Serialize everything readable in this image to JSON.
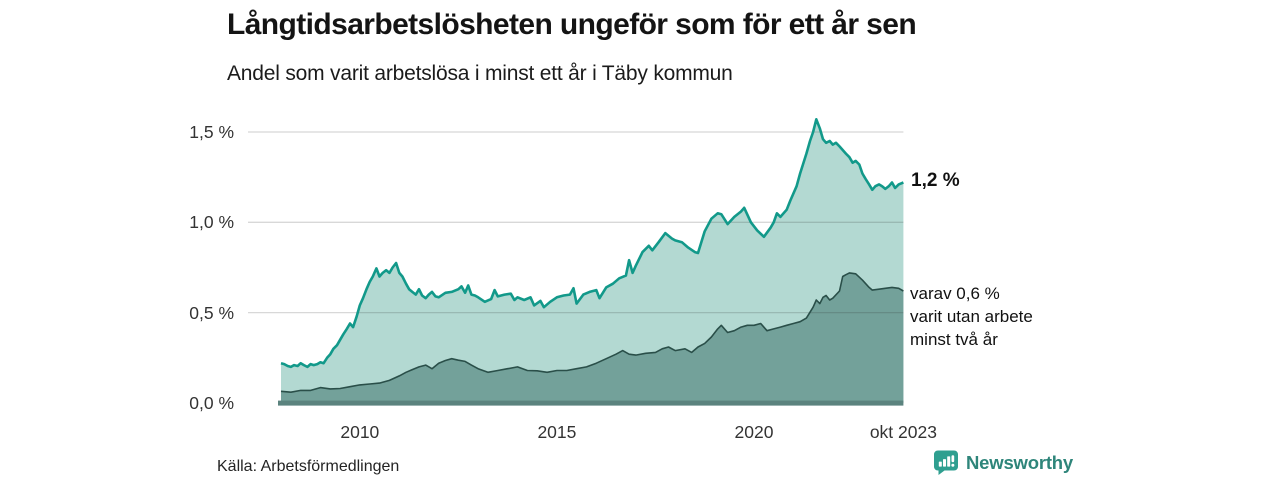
{
  "header": {
    "title": "Långtidsarbetslösheten ungeför som för ett år sen",
    "subtitle": "Andel som varit arbetslösa i minst ett år i Täby kommun"
  },
  "annotations": {
    "total_end_label": "1,2 %",
    "two_year_note": "varav 0,6 %\nvarit utan arbete\nminst två år"
  },
  "footer": {
    "source": "Källa: Arbetsförmedlingen",
    "brand": "Newsworthy"
  },
  "chart_data": {
    "type": "area",
    "title": "Långtidsarbetslösheten ungeför som för ett år sen",
    "subtitle": "Andel som varit arbetslösa i minst ett år i Täby kommun",
    "unit": "%",
    "grid": true,
    "legend_position": "right-annotations",
    "xlim": [
      2008.0,
      2023.79
    ],
    "ylim": [
      0,
      1.6
    ],
    "x_ticks": [
      {
        "t": 2010.0,
        "label": "2010"
      },
      {
        "t": 2015.0,
        "label": "2015"
      },
      {
        "t": 2020.0,
        "label": "2020"
      },
      {
        "t": 2023.79,
        "label": "okt 2023"
      }
    ],
    "y_ticks": [
      {
        "v": 0.0,
        "label": "0,0 %"
      },
      {
        "v": 0.5,
        "label": "0,5 %"
      },
      {
        "v": 1.0,
        "label": "1,0 %"
      },
      {
        "v": 1.5,
        "label": "1,5 %"
      }
    ],
    "axis_line_color": "#5b837e",
    "gridline_color": "rgba(40,40,40,0.18)",
    "series": [
      {
        "name": "Andel arbetslösa minst ett år",
        "end_value_label": "1,2 %",
        "end_value": 1.2,
        "line_color": "#12998a",
        "fill_color": "#b3d9d2",
        "points": [
          [
            2008.0,
            0.22
          ],
          [
            2008.08,
            0.215
          ],
          [
            2008.17,
            0.205
          ],
          [
            2008.25,
            0.2
          ],
          [
            2008.33,
            0.21
          ],
          [
            2008.42,
            0.205
          ],
          [
            2008.5,
            0.22
          ],
          [
            2008.58,
            0.21
          ],
          [
            2008.67,
            0.2
          ],
          [
            2008.75,
            0.215
          ],
          [
            2008.83,
            0.21
          ],
          [
            2008.92,
            0.215
          ],
          [
            2009.0,
            0.225
          ],
          [
            2009.08,
            0.22
          ],
          [
            2009.17,
            0.25
          ],
          [
            2009.25,
            0.27
          ],
          [
            2009.33,
            0.3
          ],
          [
            2009.42,
            0.32
          ],
          [
            2009.5,
            0.35
          ],
          [
            2009.58,
            0.38
          ],
          [
            2009.67,
            0.41
          ],
          [
            2009.75,
            0.44
          ],
          [
            2009.83,
            0.42
          ],
          [
            2009.92,
            0.48
          ],
          [
            2010.0,
            0.54
          ],
          [
            2010.08,
            0.58
          ],
          [
            2010.17,
            0.63
          ],
          [
            2010.25,
            0.67
          ],
          [
            2010.33,
            0.7
          ],
          [
            2010.42,
            0.745
          ],
          [
            2010.5,
            0.7
          ],
          [
            2010.58,
            0.72
          ],
          [
            2010.67,
            0.735
          ],
          [
            2010.75,
            0.72
          ],
          [
            2010.83,
            0.75
          ],
          [
            2010.92,
            0.775
          ],
          [
            2011.0,
            0.72
          ],
          [
            2011.08,
            0.7
          ],
          [
            2011.17,
            0.66
          ],
          [
            2011.25,
            0.63
          ],
          [
            2011.33,
            0.615
          ],
          [
            2011.42,
            0.6
          ],
          [
            2011.5,
            0.63
          ],
          [
            2011.58,
            0.595
          ],
          [
            2011.67,
            0.58
          ],
          [
            2011.75,
            0.6
          ],
          [
            2011.83,
            0.615
          ],
          [
            2011.92,
            0.59
          ],
          [
            2012.0,
            0.585
          ],
          [
            2012.17,
            0.61
          ],
          [
            2012.33,
            0.615
          ],
          [
            2012.5,
            0.63
          ],
          [
            2012.58,
            0.645
          ],
          [
            2012.67,
            0.61
          ],
          [
            2012.75,
            0.65
          ],
          [
            2012.83,
            0.6
          ],
          [
            2012.92,
            0.595
          ],
          [
            2013.0,
            0.585
          ],
          [
            2013.17,
            0.56
          ],
          [
            2013.33,
            0.575
          ],
          [
            2013.42,
            0.625
          ],
          [
            2013.5,
            0.59
          ],
          [
            2013.67,
            0.6
          ],
          [
            2013.83,
            0.605
          ],
          [
            2013.92,
            0.57
          ],
          [
            2014.0,
            0.585
          ],
          [
            2014.17,
            0.57
          ],
          [
            2014.33,
            0.585
          ],
          [
            2014.42,
            0.54
          ],
          [
            2014.58,
            0.565
          ],
          [
            2014.67,
            0.53
          ],
          [
            2014.83,
            0.56
          ],
          [
            2015.0,
            0.585
          ],
          [
            2015.17,
            0.595
          ],
          [
            2015.33,
            0.6
          ],
          [
            2015.42,
            0.635
          ],
          [
            2015.5,
            0.55
          ],
          [
            2015.67,
            0.6
          ],
          [
            2015.83,
            0.615
          ],
          [
            2016.0,
            0.625
          ],
          [
            2016.08,
            0.58
          ],
          [
            2016.25,
            0.64
          ],
          [
            2016.42,
            0.66
          ],
          [
            2016.58,
            0.69
          ],
          [
            2016.75,
            0.705
          ],
          [
            2016.83,
            0.79
          ],
          [
            2016.92,
            0.72
          ],
          [
            2017.0,
            0.76
          ],
          [
            2017.17,
            0.835
          ],
          [
            2017.33,
            0.87
          ],
          [
            2017.42,
            0.845
          ],
          [
            2017.58,
            0.89
          ],
          [
            2017.75,
            0.94
          ],
          [
            2017.92,
            0.91
          ],
          [
            2018.0,
            0.9
          ],
          [
            2018.17,
            0.89
          ],
          [
            2018.33,
            0.86
          ],
          [
            2018.5,
            0.835
          ],
          [
            2018.58,
            0.83
          ],
          [
            2018.75,
            0.95
          ],
          [
            2018.92,
            1.02
          ],
          [
            2019.08,
            1.05
          ],
          [
            2019.17,
            1.045
          ],
          [
            2019.33,
            0.99
          ],
          [
            2019.5,
            1.03
          ],
          [
            2019.67,
            1.06
          ],
          [
            2019.75,
            1.08
          ],
          [
            2019.92,
            1.0
          ],
          [
            2020.08,
            0.955
          ],
          [
            2020.25,
            0.92
          ],
          [
            2020.42,
            0.97
          ],
          [
            2020.5,
            1.0
          ],
          [
            2020.58,
            1.05
          ],
          [
            2020.67,
            1.03
          ],
          [
            2020.83,
            1.07
          ],
          [
            2020.92,
            1.12
          ],
          [
            2021.08,
            1.2
          ],
          [
            2021.17,
            1.27
          ],
          [
            2021.33,
            1.38
          ],
          [
            2021.42,
            1.45
          ],
          [
            2021.5,
            1.5
          ],
          [
            2021.58,
            1.57
          ],
          [
            2021.67,
            1.52
          ],
          [
            2021.75,
            1.46
          ],
          [
            2021.83,
            1.44
          ],
          [
            2021.92,
            1.45
          ],
          [
            2022.0,
            1.43
          ],
          [
            2022.08,
            1.44
          ],
          [
            2022.17,
            1.42
          ],
          [
            2022.25,
            1.4
          ],
          [
            2022.33,
            1.38
          ],
          [
            2022.42,
            1.36
          ],
          [
            2022.5,
            1.33
          ],
          [
            2022.58,
            1.34
          ],
          [
            2022.67,
            1.32
          ],
          [
            2022.75,
            1.27
          ],
          [
            2022.83,
            1.24
          ],
          [
            2022.92,
            1.21
          ],
          [
            2023.0,
            1.18
          ],
          [
            2023.08,
            1.2
          ],
          [
            2023.17,
            1.21
          ],
          [
            2023.25,
            1.2
          ],
          [
            2023.33,
            1.185
          ],
          [
            2023.42,
            1.2
          ],
          [
            2023.5,
            1.22
          ],
          [
            2023.58,
            1.19
          ],
          [
            2023.67,
            1.21
          ],
          [
            2023.79,
            1.22
          ]
        ]
      },
      {
        "name": "varav utan arbete minst två år",
        "end_value_label": "varav 0,6 %",
        "end_value": 0.6,
        "line_color": "#2a4f49",
        "fill_color": "#73a19a",
        "points": [
          [
            2008.0,
            0.065
          ],
          [
            2008.25,
            0.06
          ],
          [
            2008.5,
            0.07
          ],
          [
            2008.75,
            0.07
          ],
          [
            2009.0,
            0.085
          ],
          [
            2009.25,
            0.078
          ],
          [
            2009.5,
            0.08
          ],
          [
            2009.75,
            0.09
          ],
          [
            2010.0,
            0.1
          ],
          [
            2010.25,
            0.105
          ],
          [
            2010.5,
            0.11
          ],
          [
            2010.75,
            0.125
          ],
          [
            2011.0,
            0.15
          ],
          [
            2011.17,
            0.17
          ],
          [
            2011.33,
            0.185
          ],
          [
            2011.5,
            0.2
          ],
          [
            2011.67,
            0.21
          ],
          [
            2011.83,
            0.19
          ],
          [
            2012.0,
            0.22
          ],
          [
            2012.17,
            0.235
          ],
          [
            2012.33,
            0.245
          ],
          [
            2012.5,
            0.237
          ],
          [
            2012.67,
            0.23
          ],
          [
            2012.83,
            0.21
          ],
          [
            2013.0,
            0.19
          ],
          [
            2013.25,
            0.17
          ],
          [
            2013.5,
            0.18
          ],
          [
            2013.75,
            0.19
          ],
          [
            2014.0,
            0.2
          ],
          [
            2014.25,
            0.18
          ],
          [
            2014.5,
            0.178
          ],
          [
            2014.75,
            0.17
          ],
          [
            2015.0,
            0.18
          ],
          [
            2015.25,
            0.18
          ],
          [
            2015.5,
            0.19
          ],
          [
            2015.75,
            0.2
          ],
          [
            2016.0,
            0.22
          ],
          [
            2016.25,
            0.245
          ],
          [
            2016.5,
            0.27
          ],
          [
            2016.67,
            0.29
          ],
          [
            2016.83,
            0.27
          ],
          [
            2017.0,
            0.265
          ],
          [
            2017.25,
            0.275
          ],
          [
            2017.5,
            0.28
          ],
          [
            2017.67,
            0.3
          ],
          [
            2017.83,
            0.31
          ],
          [
            2018.0,
            0.29
          ],
          [
            2018.25,
            0.3
          ],
          [
            2018.42,
            0.28
          ],
          [
            2018.58,
            0.31
          ],
          [
            2018.75,
            0.33
          ],
          [
            2018.92,
            0.365
          ],
          [
            2019.08,
            0.41
          ],
          [
            2019.17,
            0.43
          ],
          [
            2019.33,
            0.39
          ],
          [
            2019.5,
            0.4
          ],
          [
            2019.67,
            0.42
          ],
          [
            2019.83,
            0.43
          ],
          [
            2020.0,
            0.43
          ],
          [
            2020.17,
            0.44
          ],
          [
            2020.33,
            0.4
          ],
          [
            2020.5,
            0.41
          ],
          [
            2020.67,
            0.42
          ],
          [
            2020.83,
            0.43
          ],
          [
            2021.0,
            0.44
          ],
          [
            2021.17,
            0.45
          ],
          [
            2021.33,
            0.47
          ],
          [
            2021.5,
            0.53
          ],
          [
            2021.58,
            0.57
          ],
          [
            2021.67,
            0.55
          ],
          [
            2021.75,
            0.585
          ],
          [
            2021.83,
            0.595
          ],
          [
            2021.92,
            0.57
          ],
          [
            2022.0,
            0.58
          ],
          [
            2022.17,
            0.62
          ],
          [
            2022.25,
            0.7
          ],
          [
            2022.33,
            0.71
          ],
          [
            2022.42,
            0.72
          ],
          [
            2022.58,
            0.715
          ],
          [
            2022.75,
            0.68
          ],
          [
            2022.92,
            0.64
          ],
          [
            2023.0,
            0.625
          ],
          [
            2023.17,
            0.63
          ],
          [
            2023.33,
            0.635
          ],
          [
            2023.5,
            0.64
          ],
          [
            2023.67,
            0.635
          ],
          [
            2023.79,
            0.62
          ]
        ]
      }
    ]
  }
}
